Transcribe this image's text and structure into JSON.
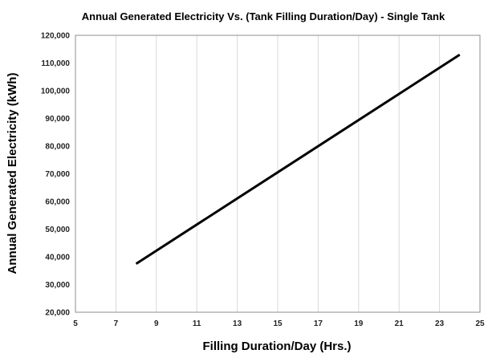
{
  "chart_data": {
    "type": "line",
    "title": "Annual Generated Electricity Vs. (Tank Filling Duration/Day) - Single Tank",
    "xlabel": "Filling Duration/Day (Hrs.)",
    "ylabel": "Annual Generated Electricity (kWh)",
    "xlim": [
      5,
      25
    ],
    "ylim": [
      20000,
      120000
    ],
    "x_ticks": [
      5,
      7,
      9,
      11,
      13,
      15,
      17,
      19,
      21,
      23,
      25
    ],
    "y_ticks": [
      20000,
      30000,
      40000,
      50000,
      60000,
      70000,
      80000,
      90000,
      100000,
      110000,
      120000
    ],
    "x_tick_labels": [
      "5",
      "7",
      "9",
      "11",
      "13",
      "15",
      "17",
      "19",
      "21",
      "23",
      "25"
    ],
    "y_tick_labels": [
      "20,000",
      "30,000",
      "40,000",
      "50,000",
      "60,000",
      "70,000",
      "80,000",
      "90,000",
      "100,000",
      "110,000",
      "120,000"
    ],
    "grid": {
      "x": true,
      "y": false
    },
    "series": [
      {
        "x": [
          8,
          24
        ],
        "y": [
          37500,
          113000
        ],
        "color": "#000000"
      }
    ]
  }
}
